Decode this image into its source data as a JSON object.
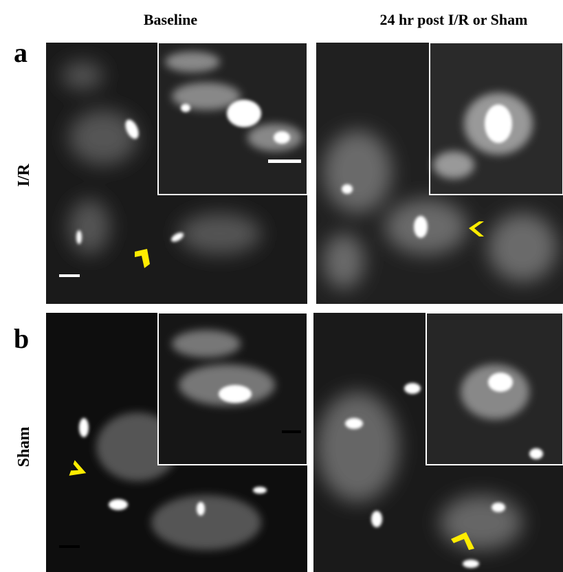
{
  "columns": [
    "Baseline",
    "24 hr post I/R or Sham"
  ],
  "rows": [
    {
      "letter": "a",
      "label": "I/R"
    },
    {
      "letter": "b",
      "label": "Sham"
    }
  ]
}
